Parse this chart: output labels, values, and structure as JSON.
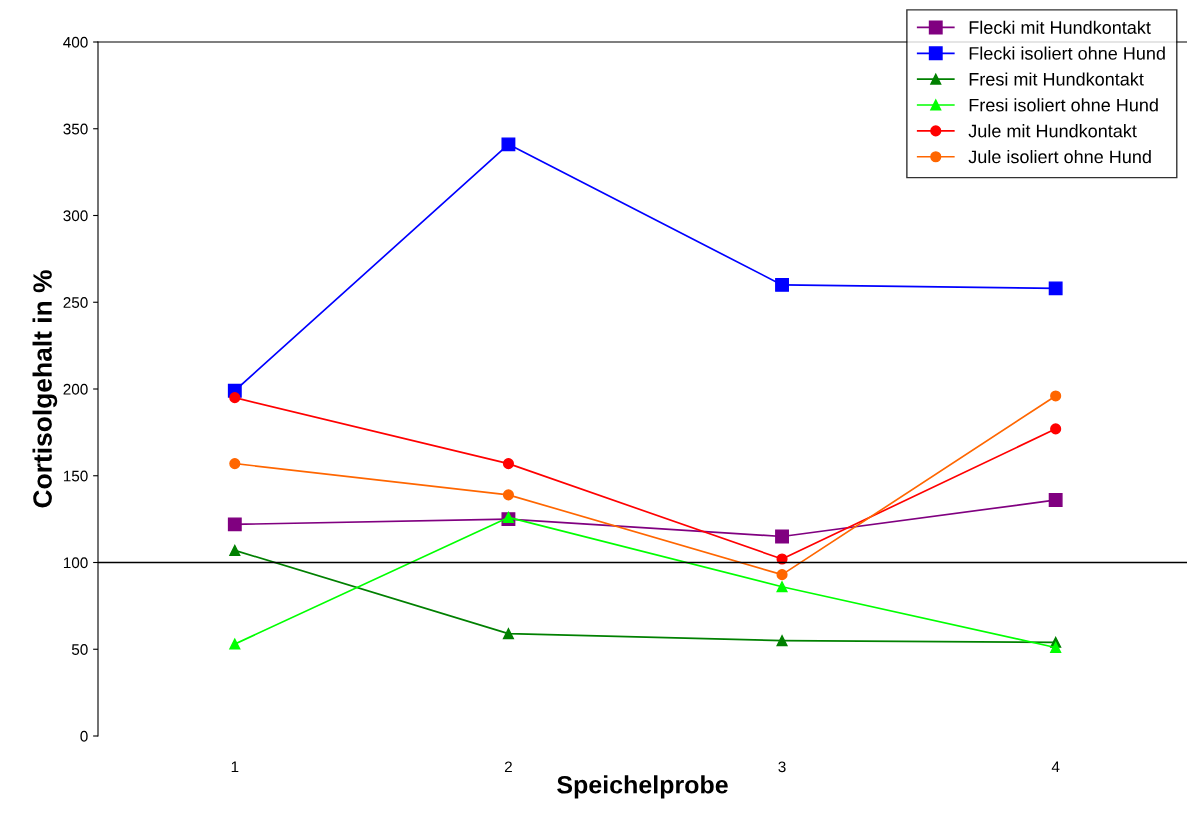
{
  "chart_data": {
    "type": "line",
    "xlabel": "Speichelprobe",
    "ylabel": "Cortisolgehalt in %",
    "categories": [
      "1",
      "2",
      "3",
      "4"
    ],
    "ylim": [
      0,
      400
    ],
    "yticks": [
      0,
      50,
      100,
      150,
      200,
      250,
      300,
      350,
      400
    ],
    "grid": false,
    "legend": "top right",
    "line_style": "solid",
    "ref_lines": [
      {
        "axis": "y",
        "value": 100,
        "color": "#000000"
      }
    ],
    "series": [
      {
        "name": "Flecki mit Hundkontakt",
        "color": "#800080",
        "marker": "square",
        "values": [
          122,
          125,
          115,
          136
        ]
      },
      {
        "name": "Flecki isoliert ohne Hund",
        "color": "#0000ff",
        "marker": "square",
        "values": [
          199,
          341,
          260,
          258
        ]
      },
      {
        "name": "Fresi mit Hundkontakt",
        "color": "#008000",
        "marker": "triangle",
        "values": [
          107,
          59,
          55,
          54
        ]
      },
      {
        "name": "Fresi isoliert ohne Hund",
        "color": "#00ff00",
        "marker": "triangle",
        "values": [
          53,
          126,
          86,
          51
        ]
      },
      {
        "name": "Jule mit Hundkontakt",
        "color": "#ff0000",
        "marker": "circle",
        "values": [
          195,
          157,
          102,
          177
        ]
      },
      {
        "name": "Jule isoliert ohne Hund",
        "color": "#ff6600",
        "marker": "circle",
        "values": [
          157,
          139,
          93,
          196
        ]
      }
    ]
  }
}
